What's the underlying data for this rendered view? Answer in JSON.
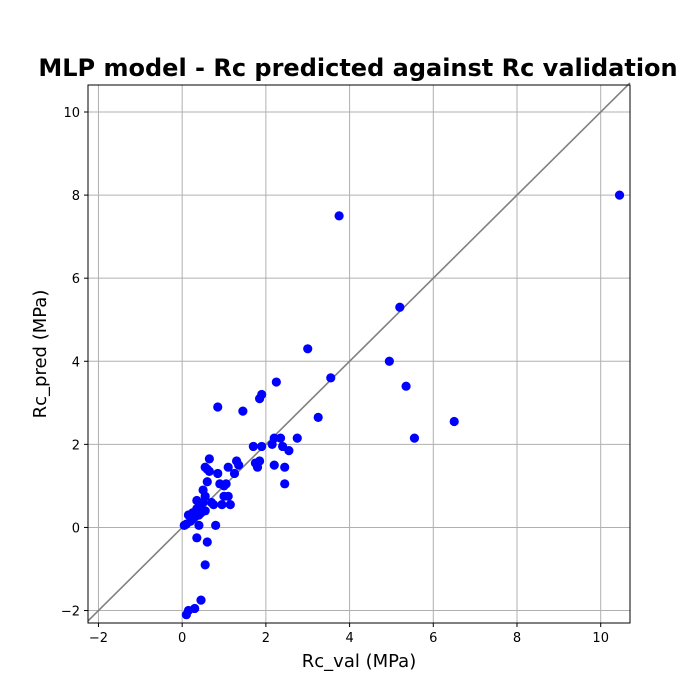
{
  "chart_data": {
    "type": "scatter",
    "title": "MLP model - Rc predicted against Rc validation",
    "xlabel": "Rc_val (MPa)",
    "ylabel": "Rc_pred (MPa)",
    "xlim": [
      -2.25,
      10.7
    ],
    "ylim": [
      -2.3,
      10.65
    ],
    "xticks": [
      -2,
      0,
      2,
      4,
      6,
      8,
      10
    ],
    "yticks": [
      -2,
      0,
      2,
      4,
      6,
      8,
      10
    ],
    "grid": true,
    "reference_line": {
      "x": [
        -2.25,
        10.7
      ],
      "y": [
        -2.25,
        10.7
      ],
      "color": "#808080"
    },
    "point_color": "#0000ff",
    "points": [
      [
        0.05,
        0.05
      ],
      [
        0.1,
        0.08
      ],
      [
        0.15,
        0.3
      ],
      [
        0.2,
        0.15
      ],
      [
        0.25,
        0.2
      ],
      [
        0.25,
        0.35
      ],
      [
        0.3,
        0.25
      ],
      [
        0.35,
        0.45
      ],
      [
        0.35,
        0.65
      ],
      [
        0.4,
        0.05
      ],
      [
        0.35,
        -0.25
      ],
      [
        0.4,
        0.3
      ],
      [
        0.45,
        0.35
      ],
      [
        0.45,
        0.55
      ],
      [
        0.5,
        0.9
      ],
      [
        0.5,
        0.6
      ],
      [
        0.55,
        1.45
      ],
      [
        0.55,
        0.4
      ],
      [
        0.55,
        0.75
      ],
      [
        0.6,
        1.4
      ],
      [
        0.6,
        1.1
      ],
      [
        0.65,
        1.65
      ],
      [
        0.65,
        1.35
      ],
      [
        0.7,
        0.6
      ],
      [
        0.75,
        0.55
      ],
      [
        0.8,
        0.05
      ],
      [
        0.85,
        1.3
      ],
      [
        0.9,
        1.05
      ],
      [
        0.95,
        0.55
      ],
      [
        1.0,
        0.75
      ],
      [
        1.0,
        1.0
      ],
      [
        1.05,
        1.05
      ],
      [
        1.1,
        1.45
      ],
      [
        1.1,
        0.75
      ],
      [
        1.15,
        0.55
      ],
      [
        1.25,
        1.3
      ],
      [
        1.3,
        1.6
      ],
      [
        1.35,
        1.5
      ],
      [
        0.85,
        2.9
      ],
      [
        0.55,
        -0.9
      ],
      [
        0.6,
        -0.35
      ],
      [
        0.1,
        -2.1
      ],
      [
        0.15,
        -2.0
      ],
      [
        0.3,
        -1.95
      ],
      [
        0.45,
        -1.75
      ],
      [
        1.45,
        2.8
      ],
      [
        1.7,
        1.95
      ],
      [
        1.75,
        1.55
      ],
      [
        1.8,
        1.45
      ],
      [
        1.85,
        1.6
      ],
      [
        1.85,
        3.1
      ],
      [
        1.9,
        3.2
      ],
      [
        1.9,
        1.95
      ],
      [
        2.15,
        2.0
      ],
      [
        2.2,
        2.15
      ],
      [
        2.2,
        1.5
      ],
      [
        2.25,
        3.5
      ],
      [
        2.35,
        2.15
      ],
      [
        2.4,
        1.95
      ],
      [
        2.45,
        1.45
      ],
      [
        2.45,
        1.05
      ],
      [
        2.55,
        1.85
      ],
      [
        2.75,
        2.15
      ],
      [
        3.0,
        4.3
      ],
      [
        3.25,
        2.65
      ],
      [
        3.55,
        3.6
      ],
      [
        3.75,
        7.5
      ],
      [
        4.95,
        4.0
      ],
      [
        5.2,
        5.3
      ],
      [
        5.35,
        3.4
      ],
      [
        5.55,
        2.15
      ],
      [
        6.5,
        2.55
      ],
      [
        10.45,
        8.0
      ]
    ]
  }
}
